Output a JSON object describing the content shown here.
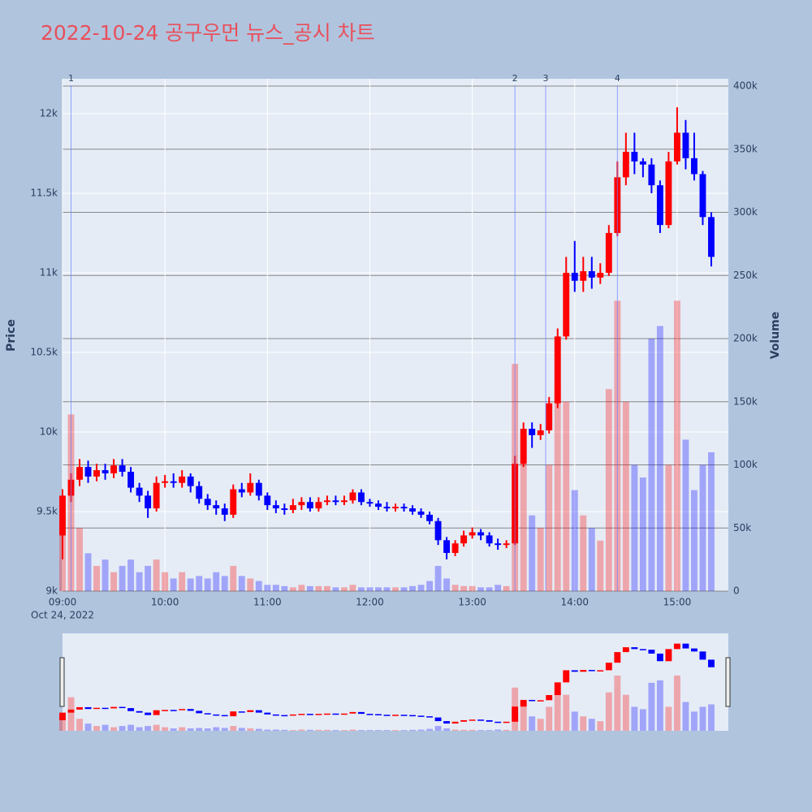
{
  "chart_data": {
    "type": "candlestick",
    "title": "2022-10-24 공구우먼 뉴스_공시 차트",
    "y_label": "Price",
    "y2_label": "Volume",
    "increasing_color": "#ff0000",
    "decreasing_color": "#0000ff",
    "x": [
      "2022-10-24 09:00",
      "2022-10-24 09:05",
      "2022-10-24 09:10",
      "2022-10-24 09:15",
      "2022-10-24 09:20",
      "2022-10-24 09:25",
      "2022-10-24 09:30",
      "2022-10-24 09:35",
      "2022-10-24 09:40",
      "2022-10-24 09:45",
      "2022-10-24 09:50",
      "2022-10-24 09:55",
      "2022-10-24 10:00",
      "2022-10-24 10:05",
      "2022-10-24 10:10",
      "2022-10-24 10:15",
      "2022-10-24 10:20",
      "2022-10-24 10:25",
      "2022-10-24 10:30",
      "2022-10-24 10:35",
      "2022-10-24 10:40",
      "2022-10-24 10:45",
      "2022-10-24 10:50",
      "2022-10-24 10:55",
      "2022-10-24 11:00",
      "2022-10-24 11:05",
      "2022-10-24 11:10",
      "2022-10-24 11:15",
      "2022-10-24 11:20",
      "2022-10-24 11:25",
      "2022-10-24 11:30",
      "2022-10-24 11:35",
      "2022-10-24 11:40",
      "2022-10-24 11:45",
      "2022-10-24 11:50",
      "2022-10-24 11:55",
      "2022-10-24 12:00",
      "2022-10-24 12:05",
      "2022-10-24 12:10",
      "2022-10-24 12:15",
      "2022-10-24 12:20",
      "2022-10-24 12:25",
      "2022-10-24 12:30",
      "2022-10-24 12:35",
      "2022-10-24 12:40",
      "2022-10-24 12:45",
      "2022-10-24 12:50",
      "2022-10-24 12:55",
      "2022-10-24 13:00",
      "2022-10-24 13:05",
      "2022-10-24 13:10",
      "2022-10-24 13:15",
      "2022-10-24 13:20",
      "2022-10-24 13:25",
      "2022-10-24 13:30",
      "2022-10-24 13:35",
      "2022-10-24 13:40",
      "2022-10-24 13:45",
      "2022-10-24 13:50",
      "2022-10-24 13:55",
      "2022-10-24 14:00",
      "2022-10-24 14:05",
      "2022-10-24 14:10",
      "2022-10-24 14:15",
      "2022-10-24 14:20",
      "2022-10-24 14:25",
      "2022-10-24 14:30",
      "2022-10-24 14:35",
      "2022-10-24 14:40",
      "2022-10-24 14:45",
      "2022-10-24 14:50",
      "2022-10-24 14:55",
      "2022-10-24 15:00",
      "2022-10-24 15:05",
      "2022-10-24 15:10",
      "2022-10-24 15:15",
      "2022-10-24 15:20"
    ],
    "open": [
      9350,
      9600,
      9700,
      9780,
      9720,
      9760,
      9740,
      9790,
      9750,
      9650,
      9600,
      9520,
      9680,
      9690,
      9680,
      9720,
      9660,
      9580,
      9540,
      9520,
      9480,
      9640,
      9620,
      9680,
      9600,
      9540,
      9520,
      9510,
      9540,
      9560,
      9520,
      9560,
      9570,
      9560,
      9570,
      9620,
      9560,
      9550,
      9530,
      9520,
      9530,
      9520,
      9500,
      9480,
      9440,
      9320,
      9240,
      9300,
      9350,
      9370,
      9350,
      9300,
      9290,
      9300,
      9800,
      10020,
      9980,
      10010,
      10180,
      10600,
      11000,
      10950,
      11010,
      10970,
      11000,
      11250,
      11600,
      11760,
      11700,
      11680,
      11550,
      11300,
      11700,
      11880,
      11720,
      11620,
      11350
    ],
    "high": [
      9640,
      9740,
      9830,
      9820,
      9800,
      9800,
      9830,
      9830,
      9780,
      9680,
      9630,
      9720,
      9730,
      9740,
      9760,
      9740,
      9690,
      9610,
      9570,
      9550,
      9670,
      9680,
      9740,
      9700,
      9620,
      9570,
      9550,
      9580,
      9590,
      9590,
      9590,
      9600,
      9600,
      9600,
      9640,
      9640,
      9580,
      9570,
      9560,
      9550,
      9550,
      9540,
      9520,
      9500,
      9460,
      9340,
      9320,
      9380,
      9400,
      9390,
      9370,
      9330,
      9320,
      9850,
      10060,
      10060,
      10050,
      10220,
      10650,
      11100,
      11200,
      11100,
      11100,
      11060,
      11300,
      11700,
      11880,
      11880,
      11720,
      11720,
      11580,
      11760,
      12040,
      11960,
      11880,
      11640,
      11380
    ],
    "low": [
      9200,
      9560,
      9660,
      9680,
      9690,
      9700,
      9710,
      9720,
      9620,
      9560,
      9460,
      9500,
      9650,
      9650,
      9650,
      9620,
      9550,
      9510,
      9480,
      9440,
      9460,
      9590,
      9600,
      9570,
      9510,
      9490,
      9480,
      9490,
      9510,
      9500,
      9500,
      9540,
      9540,
      9540,
      9550,
      9540,
      9530,
      9510,
      9500,
      9500,
      9500,
      9480,
      9460,
      9420,
      9290,
      9200,
      9220,
      9280,
      9330,
      9320,
      9280,
      9260,
      9270,
      9290,
      9780,
      9900,
      9950,
      9990,
      10150,
      10580,
      10880,
      10880,
      10900,
      10930,
      10980,
      11230,
      11550,
      11620,
      11600,
      11500,
      11250,
      11280,
      11680,
      11650,
      11580,
      11300,
      11040
    ],
    "close": [
      9600,
      9700,
      9780,
      9720,
      9760,
      9740,
      9790,
      9750,
      9650,
      9600,
      9520,
      9680,
      9690,
      9680,
      9720,
      9660,
      9580,
      9540,
      9520,
      9480,
      9640,
      9620,
      9680,
      9600,
      9540,
      9520,
      9510,
      9540,
      9560,
      9520,
      9560,
      9570,
      9560,
      9570,
      9620,
      9560,
      9550,
      9530,
      9520,
      9530,
      9520,
      9500,
      9480,
      9440,
      9320,
      9240,
      9300,
      9350,
      9370,
      9350,
      9300,
      9290,
      9300,
      9800,
      10020,
      9980,
      10010,
      10180,
      10600,
      11000,
      10950,
      11010,
      10970,
      11000,
      11250,
      11600,
      11760,
      11700,
      11680,
      11550,
      11300,
      11700,
      11880,
      11720,
      11620,
      11350,
      11100
    ],
    "volume": [
      60000,
      140000,
      50000,
      30000,
      20000,
      25000,
      15000,
      20000,
      25000,
      15000,
      20000,
      25000,
      15000,
      10000,
      15000,
      10000,
      12000,
      10000,
      15000,
      12000,
      20000,
      12000,
      10000,
      8000,
      5000,
      5000,
      4000,
      3000,
      5000,
      4000,
      4000,
      4000,
      3000,
      3000,
      5000,
      3000,
      3000,
      3000,
      3000,
      3000,
      3000,
      4000,
      5000,
      8000,
      20000,
      10000,
      5000,
      4000,
      4000,
      3000,
      3000,
      5000,
      4000,
      180000,
      120000,
      60000,
      50000,
      100000,
      160000,
      150000,
      80000,
      60000,
      50000,
      40000,
      160000,
      230000,
      150000,
      100000,
      90000,
      200000,
      210000,
      100000,
      230000,
      120000,
      80000,
      100000,
      110000
    ],
    "news": [
      {
        "time": "2022-10-24 09:05",
        "label": "1"
      },
      {
        "time": "2022-10-24 13:25",
        "label": "2"
      },
      {
        "time": "2022-10-24 13:43",
        "label": "3"
      },
      {
        "time": "2022-10-24 14:25",
        "label": "4"
      }
    ],
    "xlim": [
      "2022-10-24 09:00",
      "2022-10-24 15:30"
    ],
    "xticks": [
      {
        "value": "2022-10-24 09:00",
        "label": "09:00"
      },
      {
        "value": "2022-10-24 10:00",
        "label": "10:00"
      },
      {
        "value": "2022-10-24 11:00",
        "label": "11:00"
      },
      {
        "value": "2022-10-24 12:00",
        "label": "12:00"
      },
      {
        "value": "2022-10-24 13:00",
        "label": "13:00"
      },
      {
        "value": "2022-10-24 14:00",
        "label": "14:00"
      },
      {
        "value": "2022-10-24 15:00",
        "label": "15:00"
      }
    ],
    "x_date_label": "Oct 24, 2022",
    "ylim": [
      9000,
      12219
    ],
    "yticks": [
      {
        "value": 9000,
        "label": "9k"
      },
      {
        "value": 9500,
        "label": "9.5k"
      },
      {
        "value": 10000,
        "label": "10k"
      },
      {
        "value": 10500,
        "label": "10.5k"
      },
      {
        "value": 11000,
        "label": "11k"
      },
      {
        "value": 11500,
        "label": "11.5k"
      },
      {
        "value": 12000,
        "label": "12k"
      }
    ],
    "y2lim": [
      0,
      405800
    ],
    "y2ticks": [
      0,
      {
        "value": 50000,
        "label": "50k"
      },
      {
        "value": 100000,
        "label": "100k"
      },
      {
        "value": 150000,
        "label": "150k"
      },
      {
        "value": 200000,
        "label": "200k"
      },
      {
        "value": 250000,
        "label": "250k"
      },
      {
        "value": 300000,
        "label": "300k"
      },
      {
        "value": 350000,
        "label": "350k"
      },
      {
        "value": 400000,
        "label": "400k"
      }
    ],
    "grid": true,
    "rangeslider": true
  }
}
